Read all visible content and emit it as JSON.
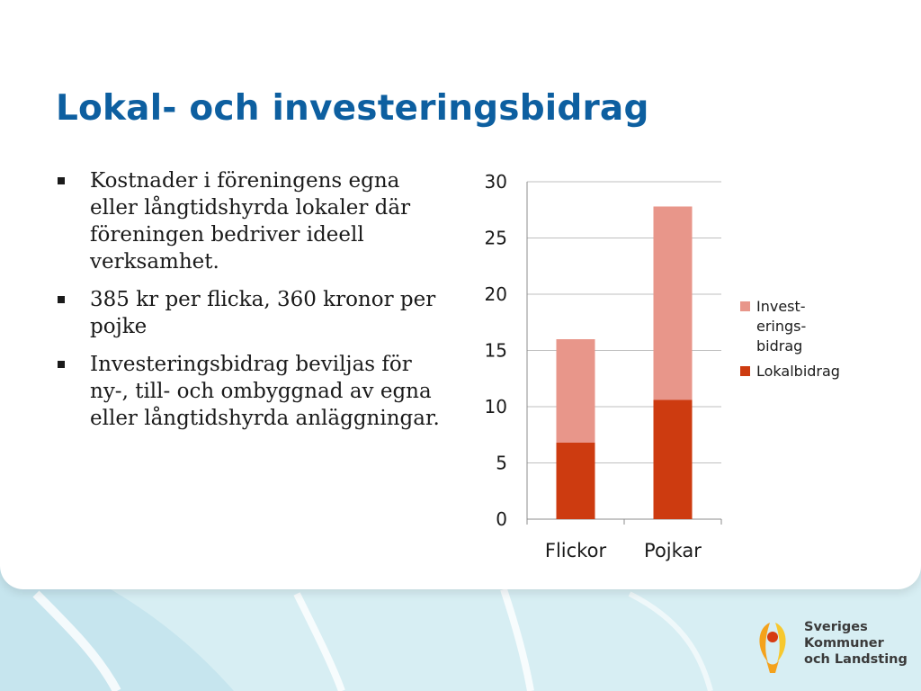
{
  "slide": {
    "title": "Lokal- och investeringsbidrag",
    "bullets": [
      "Kostnader i föreningens egna eller långtidshyrda lokaler där föreningen bedriver ideell verksamhet.",
      "385 kr per flicka, 360 kronor per pojke",
      "Investeringsbidrag beviljas för ny-, till- och ombyggnad av egna eller långtidshyrda anläggningar."
    ]
  },
  "logo": {
    "lines": [
      "Sveriges",
      "Kommuner",
      "och Landsting"
    ],
    "icon": "svkl-figure-logo-icon"
  },
  "colors": {
    "title": "#0d5fa0",
    "lokalbidrag": "#cd3b10",
    "investeringsbidrag": "#e8968a",
    "logo_orange": "#f4a21c",
    "logo_yellow": "#f7c82e",
    "logo_red": "#d63b12",
    "background_wave": "#d7eef3"
  },
  "chart_data": {
    "type": "bar",
    "stacked": true,
    "categories": [
      "Flickor",
      "Pojkar"
    ],
    "series": [
      {
        "name": "Lokalbidrag",
        "values": [
          6.8,
          10.6
        ],
        "color": "#cd3b10"
      },
      {
        "name": "Invest-erings-bidrag",
        "values": [
          9.2,
          17.2
        ],
        "color": "#e8968a"
      }
    ],
    "legend_labels": [
      [
        "Invest-",
        "erings-",
        "bidrag"
      ],
      [
        "Lokalbidrag"
      ]
    ],
    "ylim": [
      0,
      30
    ],
    "yticks": [
      "0",
      "5",
      "10",
      "15",
      "20",
      "25",
      "30"
    ],
    "ytick_values": [
      0,
      5,
      10,
      15,
      20,
      25,
      30
    ],
    "grid": true,
    "legend_position": "right",
    "xlabel": "",
    "ylabel": ""
  }
}
